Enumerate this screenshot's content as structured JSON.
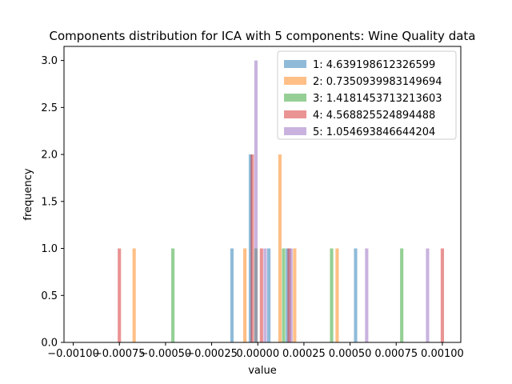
{
  "chart_data": {
    "type": "bar",
    "title": "Components distribution for ICA with 5 components: Wine Quality data",
    "xlabel": "value",
    "ylabel": "frequency",
    "xlim": [
      -0.00105,
      0.0011
    ],
    "ylim": [
      0,
      3.15
    ],
    "x_ticks": [
      -0.001,
      -0.00075,
      -0.0005,
      -0.00025,
      0.0,
      0.00025,
      0.0005,
      0.00075,
      0.001
    ],
    "x_tick_labels": [
      "−0.00100",
      "−0.00075",
      "−0.00050",
      "−0.00025",
      "0.00000",
      "0.00025",
      "0.00050",
      "0.00075",
      "0.00100"
    ],
    "y_ticks": [
      0.0,
      0.5,
      1.0,
      1.5,
      2.0,
      2.5,
      3.0
    ],
    "y_tick_labels": [
      "0.0",
      "0.5",
      "1.0",
      "1.5",
      "2.0",
      "2.5",
      "3.0"
    ],
    "bar_width": 1.8e-05,
    "legend_position": "top-right",
    "series": [
      {
        "name": "1: 4.639198612326599",
        "color": "#1f77b4",
        "bars": [
          {
            "x": -0.00014,
            "y": 1
          },
          {
            "x": -4e-05,
            "y": 2
          },
          {
            "x": 6e-05,
            "y": 1
          },
          {
            "x": 0.00016,
            "y": 1
          },
          {
            "x": 0.00053,
            "y": 1
          }
        ]
      },
      {
        "name": "2: 0.7350939983149694",
        "color": "#ff7f0e",
        "bars": [
          {
            "x": -0.00067,
            "y": 1
          },
          {
            "x": -7e-05,
            "y": 1
          },
          {
            "x": 0.00012,
            "y": 2
          },
          {
            "x": 0.0002,
            "y": 1
          },
          {
            "x": 0.00043,
            "y": 1
          }
        ]
      },
      {
        "name": "3: 1.4181453713213603",
        "color": "#2ca02c",
        "bars": [
          {
            "x": -0.00046,
            "y": 1
          },
          {
            "x": -1e-05,
            "y": 1
          },
          {
            "x": 0.00014,
            "y": 1
          },
          {
            "x": 0.0004,
            "y": 1
          },
          {
            "x": 0.00078,
            "y": 1
          }
        ]
      },
      {
        "name": "4: 4.568825524894488",
        "color": "#d62728",
        "bars": [
          {
            "x": -0.00075,
            "y": 1
          },
          {
            "x": -3e-05,
            "y": 2
          },
          {
            "x": 2e-05,
            "y": 1
          },
          {
            "x": 0.00017,
            "y": 1
          },
          {
            "x": 0.001,
            "y": 1
          }
        ]
      },
      {
        "name": "5: 1.054693846644204",
        "color": "#9467bd",
        "bars": [
          {
            "x": -1e-05,
            "y": 3
          },
          {
            "x": 4e-05,
            "y": 1
          },
          {
            "x": 0.00018,
            "y": 1
          },
          {
            "x": 0.00059,
            "y": 1
          },
          {
            "x": 0.00092,
            "y": 1
          }
        ]
      }
    ]
  }
}
